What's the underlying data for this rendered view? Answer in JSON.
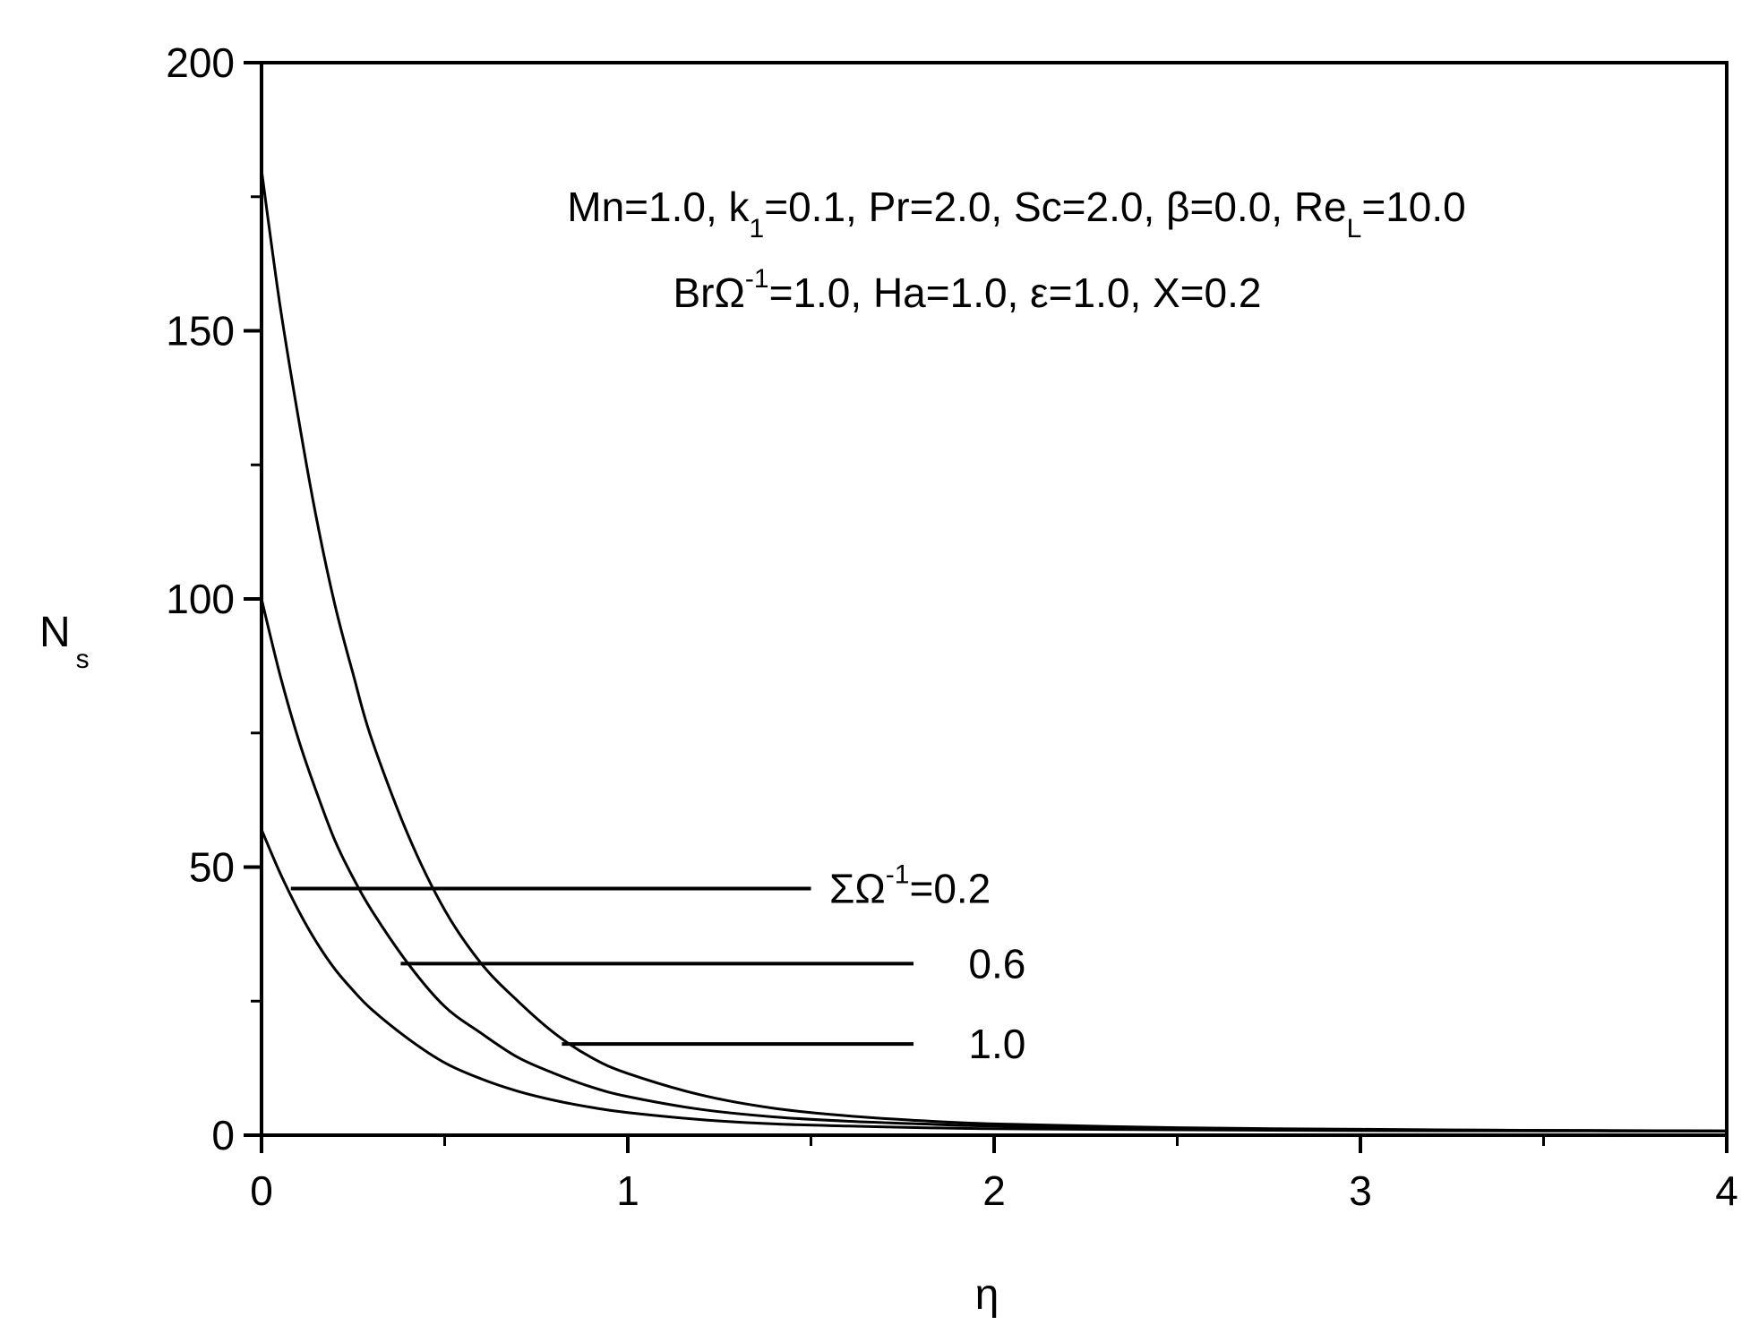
{
  "chart_data": {
    "type": "line",
    "xlabel": "η",
    "ylabel": {
      "main": "N",
      "sub": "s"
    },
    "xlim": [
      0,
      4
    ],
    "ylim": [
      0,
      200
    ],
    "x_ticks": [
      0,
      1,
      2,
      3,
      4
    ],
    "x_tick_labels": [
      "0",
      "1",
      "2",
      "3",
      "4"
    ],
    "x_minor_ticks": [
      0.5,
      1.5,
      2.5,
      3.5
    ],
    "y_ticks": [
      0,
      50,
      100,
      150,
      200
    ],
    "y_tick_labels": [
      "0",
      "50",
      "100",
      "150",
      "200"
    ],
    "y_minor_ticks": [
      25,
      75,
      125,
      175
    ],
    "grid": false,
    "annotations": {
      "params_line1": {
        "parts": [
          {
            "text": "Mn=1.0, k"
          },
          {
            "text": "1",
            "sub": true
          },
          {
            "text": "=0.1, Pr=2.0, Sc=2.0, β=0.0, Re"
          },
          {
            "text": "L",
            "sub": true
          },
          {
            "text": "=10.0"
          }
        ]
      },
      "params_line2": {
        "parts": [
          {
            "text": "BrΩ"
          },
          {
            "text": "-1",
            "sup": true
          },
          {
            "text": "=1.0, Ha=1.0, ε=1.0, X=0.2"
          }
        ]
      }
    },
    "series": [
      {
        "label_parts": [
          {
            "text": "ΣΩ"
          },
          {
            "text": "-1",
            "sup": true
          },
          {
            "text": "=0.2"
          }
        ],
        "x": [
          0,
          0.05,
          0.1,
          0.15,
          0.2,
          0.25,
          0.3,
          0.4,
          0.5,
          0.6,
          0.7,
          0.8,
          0.9,
          1.0,
          1.2,
          1.4,
          1.6,
          1.8,
          2.0,
          2.5,
          3.0,
          3.5,
          4.0
        ],
        "y": [
          180,
          155,
          134,
          115,
          99,
          86,
          74,
          56,
          42,
          32,
          25,
          19,
          14.5,
          11.5,
          7.5,
          5.0,
          3.6,
          2.7,
          2.1,
          1.4,
          1.1,
          0.9,
          0.8
        ],
        "leader_y": 17,
        "leader_x_from": 0.82,
        "leader_x_to": 1.78
      },
      {
        "label_parts": [
          {
            "text": "0.6"
          }
        ],
        "x": [
          0,
          0.05,
          0.1,
          0.15,
          0.2,
          0.25,
          0.3,
          0.4,
          0.5,
          0.6,
          0.7,
          0.8,
          0.9,
          1.0,
          1.2,
          1.4,
          1.6,
          1.8,
          2.0,
          2.5,
          3.0,
          3.5,
          4.0
        ],
        "y": [
          100,
          86,
          74,
          64,
          55,
          48,
          42,
          32,
          24,
          19,
          14.5,
          11.5,
          9,
          7.2,
          4.8,
          3.4,
          2.6,
          2.1,
          1.7,
          1.2,
          1.0,
          0.9,
          0.8
        ],
        "leader_y": 32,
        "leader_x_from": 0.38,
        "leader_x_to": 1.78
      },
      {
        "label_parts": [
          {
            "text": "1.0"
          }
        ],
        "x": [
          0,
          0.05,
          0.1,
          0.15,
          0.2,
          0.25,
          0.3,
          0.4,
          0.5,
          0.6,
          0.7,
          0.8,
          0.9,
          1.0,
          1.2,
          1.4,
          1.6,
          1.8,
          2.0,
          2.5,
          3.0,
          3.5,
          4.0
        ],
        "y": [
          57,
          49,
          42,
          36,
          31,
          27,
          23.5,
          18,
          13.5,
          10.5,
          8.2,
          6.5,
          5.2,
          4.2,
          2.9,
          2.1,
          1.7,
          1.4,
          1.2,
          1.0,
          0.85,
          0.8,
          0.75
        ],
        "leader_y": 46,
        "leader_x_from": 0.08,
        "leader_x_to": 1.5
      }
    ]
  }
}
